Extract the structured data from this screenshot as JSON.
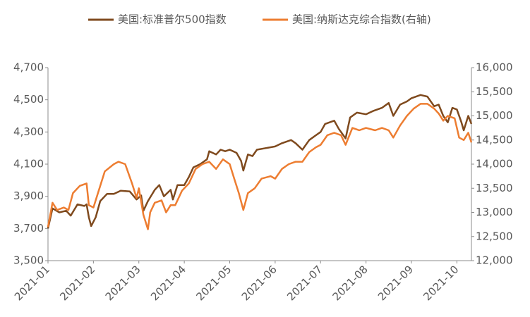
{
  "chart_data": {
    "type": "line",
    "xlim": [
      0,
      9.32
    ],
    "xticks": [
      {
        "value": 0,
        "label": "2021-01"
      },
      {
        "value": 1,
        "label": "2021-02"
      },
      {
        "value": 2,
        "label": "2021-03"
      },
      {
        "value": 3,
        "label": "2021-04"
      },
      {
        "value": 4,
        "label": "2021-05"
      },
      {
        "value": 5,
        "label": "2021-06"
      },
      {
        "value": 6,
        "label": "2021-07"
      },
      {
        "value": 7,
        "label": "2021-08"
      },
      {
        "value": 8,
        "label": "2021-09"
      },
      {
        "value": 9,
        "label": "2021-10"
      }
    ],
    "ylim": [
      3500,
      4700
    ],
    "yticks": [
      {
        "value": 3500,
        "label": "3,500"
      },
      {
        "value": 3700,
        "label": "3,700"
      },
      {
        "value": 3900,
        "label": "3,900"
      },
      {
        "value": 4100,
        "label": "4,100"
      },
      {
        "value": 4300,
        "label": "4,300"
      },
      {
        "value": 4500,
        "label": "4,500"
      },
      {
        "value": 4700,
        "label": "4,700"
      }
    ],
    "y2lim": [
      12000,
      16000
    ],
    "y2ticks": [
      {
        "value": 12000,
        "label": "12,000"
      },
      {
        "value": 12500,
        "label": "12,500"
      },
      {
        "value": 13000,
        "label": "13,000"
      },
      {
        "value": 13500,
        "label": "13,500"
      },
      {
        "value": 14000,
        "label": "14,000"
      },
      {
        "value": 14500,
        "label": "14,500"
      },
      {
        "value": 15000,
        "label": "15,000"
      },
      {
        "value": 15500,
        "label": "15,500"
      },
      {
        "value": 16000,
        "label": "16,000"
      }
    ],
    "legend": "top",
    "series": [
      {
        "name": "美国:标准普尔500指数",
        "color": "#7f4a1e",
        "x": [
          0,
          0.1,
          0.25,
          0.4,
          0.5,
          0.65,
          0.8,
          0.85,
          0.9,
          0.95,
          1.05,
          1.15,
          1.3,
          1.45,
          1.6,
          1.8,
          1.95,
          2.05,
          2.1,
          2.2,
          2.35,
          2.45,
          2.55,
          2.7,
          2.75,
          2.85,
          3.0,
          3.1,
          3.2,
          3.35,
          3.5,
          3.55,
          3.7,
          3.8,
          3.9,
          4.0,
          4.15,
          4.25,
          4.3,
          4.4,
          4.5,
          4.6,
          4.8,
          5.0,
          5.15,
          5.35,
          5.45,
          5.6,
          5.75,
          5.9,
          6.0,
          6.1,
          6.3,
          6.4,
          6.55,
          6.65,
          6.8,
          7.0,
          7.15,
          7.35,
          7.5,
          7.6,
          7.75,
          7.9,
          8.0,
          8.2,
          8.35,
          8.5,
          8.6,
          8.7,
          8.8,
          8.9,
          9.0,
          9.1,
          9.15,
          9.25,
          9.32
        ],
        "values": [
          3700,
          3825,
          3800,
          3810,
          3780,
          3850,
          3840,
          3850,
          3770,
          3715,
          3770,
          3870,
          3915,
          3915,
          3935,
          3930,
          3880,
          3905,
          3810,
          3870,
          3940,
          3970,
          3900,
          3940,
          3880,
          3970,
          3970,
          4020,
          4080,
          4100,
          4130,
          4180,
          4160,
          4190,
          4180,
          4190,
          4170,
          4120,
          4060,
          4160,
          4150,
          4190,
          4200,
          4210,
          4230,
          4250,
          4230,
          4190,
          4250,
          4280,
          4300,
          4350,
          4370,
          4320,
          4260,
          4390,
          4420,
          4410,
          4430,
          4450,
          4480,
          4400,
          4470,
          4490,
          4510,
          4530,
          4520,
          4460,
          4470,
          4400,
          4360,
          4450,
          4440,
          4360,
          4310,
          4400,
          4350
        ]
      },
      {
        "name": "美国:纳斯达克综合指数(右轴)",
        "color": "#ed7d31",
        "axis": "y2",
        "x": [
          0,
          0.1,
          0.2,
          0.35,
          0.45,
          0.55,
          0.7,
          0.85,
          0.9,
          1.0,
          1.1,
          1.25,
          1.45,
          1.55,
          1.7,
          1.85,
          1.95,
          2.0,
          2.1,
          2.2,
          2.25,
          2.35,
          2.5,
          2.6,
          2.7,
          2.8,
          2.95,
          3.1,
          3.25,
          3.4,
          3.55,
          3.7,
          3.85,
          4.0,
          4.1,
          4.2,
          4.3,
          4.4,
          4.55,
          4.7,
          4.9,
          5.0,
          5.15,
          5.3,
          5.45,
          5.6,
          5.75,
          5.9,
          6.0,
          6.15,
          6.3,
          6.45,
          6.55,
          6.7,
          6.85,
          7.0,
          7.2,
          7.35,
          7.5,
          7.6,
          7.75,
          7.9,
          8.05,
          8.2,
          8.35,
          8.5,
          8.6,
          8.7,
          8.8,
          8.95,
          9.05,
          9.15,
          9.25,
          9.32
        ],
        "values": [
          12700,
          13200,
          13050,
          13100,
          13050,
          13400,
          13550,
          13600,
          13150,
          13100,
          13400,
          13850,
          14000,
          14050,
          14000,
          13600,
          13300,
          13500,
          12950,
          12650,
          13000,
          13200,
          13250,
          13000,
          13150,
          13150,
          13450,
          13600,
          13900,
          14000,
          14050,
          13900,
          14100,
          14000,
          13700,
          13400,
          13050,
          13400,
          13500,
          13700,
          13750,
          13700,
          13900,
          14000,
          14050,
          14050,
          14250,
          14350,
          14400,
          14600,
          14650,
          14600,
          14400,
          14750,
          14700,
          14750,
          14700,
          14750,
          14700,
          14550,
          14800,
          15000,
          15150,
          15250,
          15250,
          15150,
          15050,
          14900,
          15000,
          14950,
          14550,
          14500,
          14650,
          14450
        ]
      }
    ]
  }
}
